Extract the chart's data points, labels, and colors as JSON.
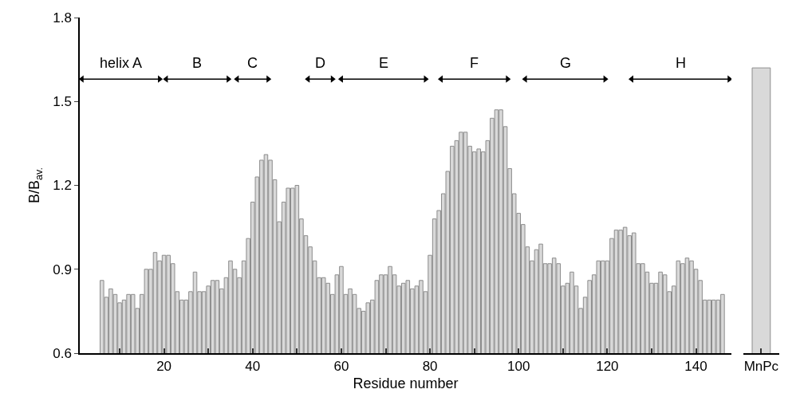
{
  "chart_data": [
    {
      "type": "bar",
      "xlabel": "Residue number",
      "ylabel": "B/B$_{av.}$",
      "x": [
        6,
        7,
        8,
        9,
        10,
        11,
        12,
        13,
        14,
        15,
        16,
        17,
        18,
        19,
        20,
        21,
        22,
        23,
        24,
        25,
        26,
        27,
        28,
        29,
        30,
        31,
        32,
        33,
        34,
        35,
        36,
        37,
        38,
        39,
        40,
        41,
        42,
        43,
        44,
        45,
        46,
        47,
        48,
        49,
        50,
        51,
        52,
        53,
        54,
        55,
        56,
        57,
        58,
        59,
        60,
        61,
        62,
        63,
        64,
        65,
        66,
        67,
        68,
        69,
        70,
        71,
        72,
        73,
        74,
        75,
        76,
        77,
        78,
        79,
        80,
        81,
        82,
        83,
        84,
        85,
        86,
        87,
        88,
        89,
        90,
        91,
        92,
        93,
        94,
        95,
        96,
        97,
        98,
        99,
        100,
        101,
        102,
        103,
        104,
        105,
        106,
        107,
        108,
        109,
        110,
        111,
        112,
        113,
        114,
        115,
        116,
        117,
        118,
        119,
        120,
        121,
        122,
        123,
        124,
        125,
        126,
        127,
        128,
        129,
        130,
        131,
        132,
        133,
        134,
        135,
        136,
        137,
        138,
        139,
        140,
        141,
        142,
        143,
        144,
        145,
        146
      ],
      "series": [
        {
          "type": "line",
          "name": "helix A",
          "x": [
            1.5,
            19
          ],
          "values": [
            1.58,
            1.58
          ],
          "color": "#000000",
          "marker": "triangle"
        },
        {
          "type": "line",
          "name": "B",
          "x": [
            20.5,
            34.5
          ],
          "values": [
            1.58,
            1.58
          ],
          "color": "#000000",
          "marker": "triangle"
        },
        {
          "type": "line",
          "name": "C",
          "x": [
            36.5,
            43.5
          ],
          "values": [
            1.58,
            1.58
          ],
          "color": "#000000",
          "marker": "triangle"
        },
        {
          "type": "line",
          "name": "D",
          "x": [
            52.5,
            58
          ],
          "values": [
            1.58,
            1.58
          ],
          "color": "#000000",
          "marker": "triangle"
        },
        {
          "type": "line",
          "name": "E",
          "x": [
            60,
            79
          ],
          "values": [
            1.58,
            1.58
          ],
          "color": "#000000",
          "marker": "triangle"
        },
        {
          "type": "line",
          "name": "F",
          "x": [
            82.5,
            97.5
          ],
          "values": [
            1.58,
            1.58
          ],
          "color": "#000000",
          "marker": "triangle"
        },
        {
          "type": "line",
          "name": "G",
          "x": [
            101.5,
            119.5
          ],
          "values": [
            1.58,
            1.58
          ],
          "color": "#000000",
          "marker": "triangle"
        },
        {
          "type": "line",
          "name": "H",
          "x": [
            125.5,
            147.5
          ],
          "values": [
            1.58,
            1.58
          ],
          "color": "#000000",
          "marker": "triangle"
        },
        {
          "color": "#d9d9d9",
          "values": [
            0.86,
            0.8,
            0.83,
            0.81,
            0.78,
            0.79,
            0.81,
            0.81,
            0.76,
            0.81,
            0.9,
            0.9,
            0.96,
            0.93,
            0.95,
            0.95,
            0.92,
            0.82,
            0.79,
            0.79,
            0.82,
            0.89,
            0.82,
            0.82,
            0.84,
            0.86,
            0.86,
            0.83,
            0.87,
            0.93,
            0.9,
            0.87,
            0.93,
            1.01,
            1.14,
            1.23,
            1.29,
            1.31,
            1.29,
            1.22,
            1.07,
            1.14,
            1.19,
            1.19,
            1.2,
            1.08,
            1.02,
            0.98,
            0.93,
            0.87,
            0.87,
            0.85,
            0.81,
            0.88,
            0.91,
            0.81,
            0.83,
            0.81,
            0.76,
            0.75,
            0.78,
            0.79,
            0.86,
            0.88,
            0.88,
            0.91,
            0.88,
            0.84,
            0.85,
            0.86,
            0.83,
            0.84,
            0.86,
            0.82,
            0.95,
            1.08,
            1.11,
            1.17,
            1.25,
            1.34,
            1.36,
            1.39,
            1.39,
            1.34,
            1.32,
            1.33,
            1.32,
            1.36,
            1.44,
            1.47,
            1.47,
            1.41,
            1.26,
            1.17,
            1.1,
            1.06,
            0.98,
            0.93,
            0.97,
            0.99,
            0.92,
            0.92,
            0.94,
            0.92,
            0.84,
            0.85,
            0.89,
            0.84,
            0.76,
            0.8,
            0.86,
            0.88,
            0.93,
            0.93,
            0.93,
            1.01,
            1.04,
            1.04,
            1.05,
            1.02,
            1.03,
            0.92,
            0.92,
            0.89,
            0.85,
            0.85,
            0.89,
            0.88,
            0.82,
            0.84,
            0.93,
            0.92,
            0.94,
            0.93,
            0.9,
            0.86,
            0.79,
            0.79,
            0.79,
            0.79,
            0.81
          ]
        }
      ],
      "xlim": [
        1,
        148
      ],
      "ylim": [
        0.6,
        1.8
      ],
      "xticks": [
        {
          "value": 10,
          "label": null
        },
        20,
        {
          "value": 30,
          "label": null
        },
        40,
        {
          "value": 50,
          "label": null
        },
        60,
        {
          "value": 70,
          "label": null
        },
        80,
        {
          "value": 90,
          "label": null
        },
        100,
        {
          "value": 110,
          "label": null
        },
        120,
        {
          "value": 130,
          "label": null
        },
        140
      ],
      "yticks": [
        0.6,
        0.9,
        1.2,
        1.5,
        1.8
      ],
      "legend": false
    },
    {
      "type": "bar",
      "categories": [
        "MnPc"
      ],
      "series": [
        {
          "color": "#d9d9d9",
          "values": [
            1.62
          ]
        }
      ],
      "ylim": [
        0.6,
        1.8
      ],
      "tick_labels": "x"
    }
  ]
}
